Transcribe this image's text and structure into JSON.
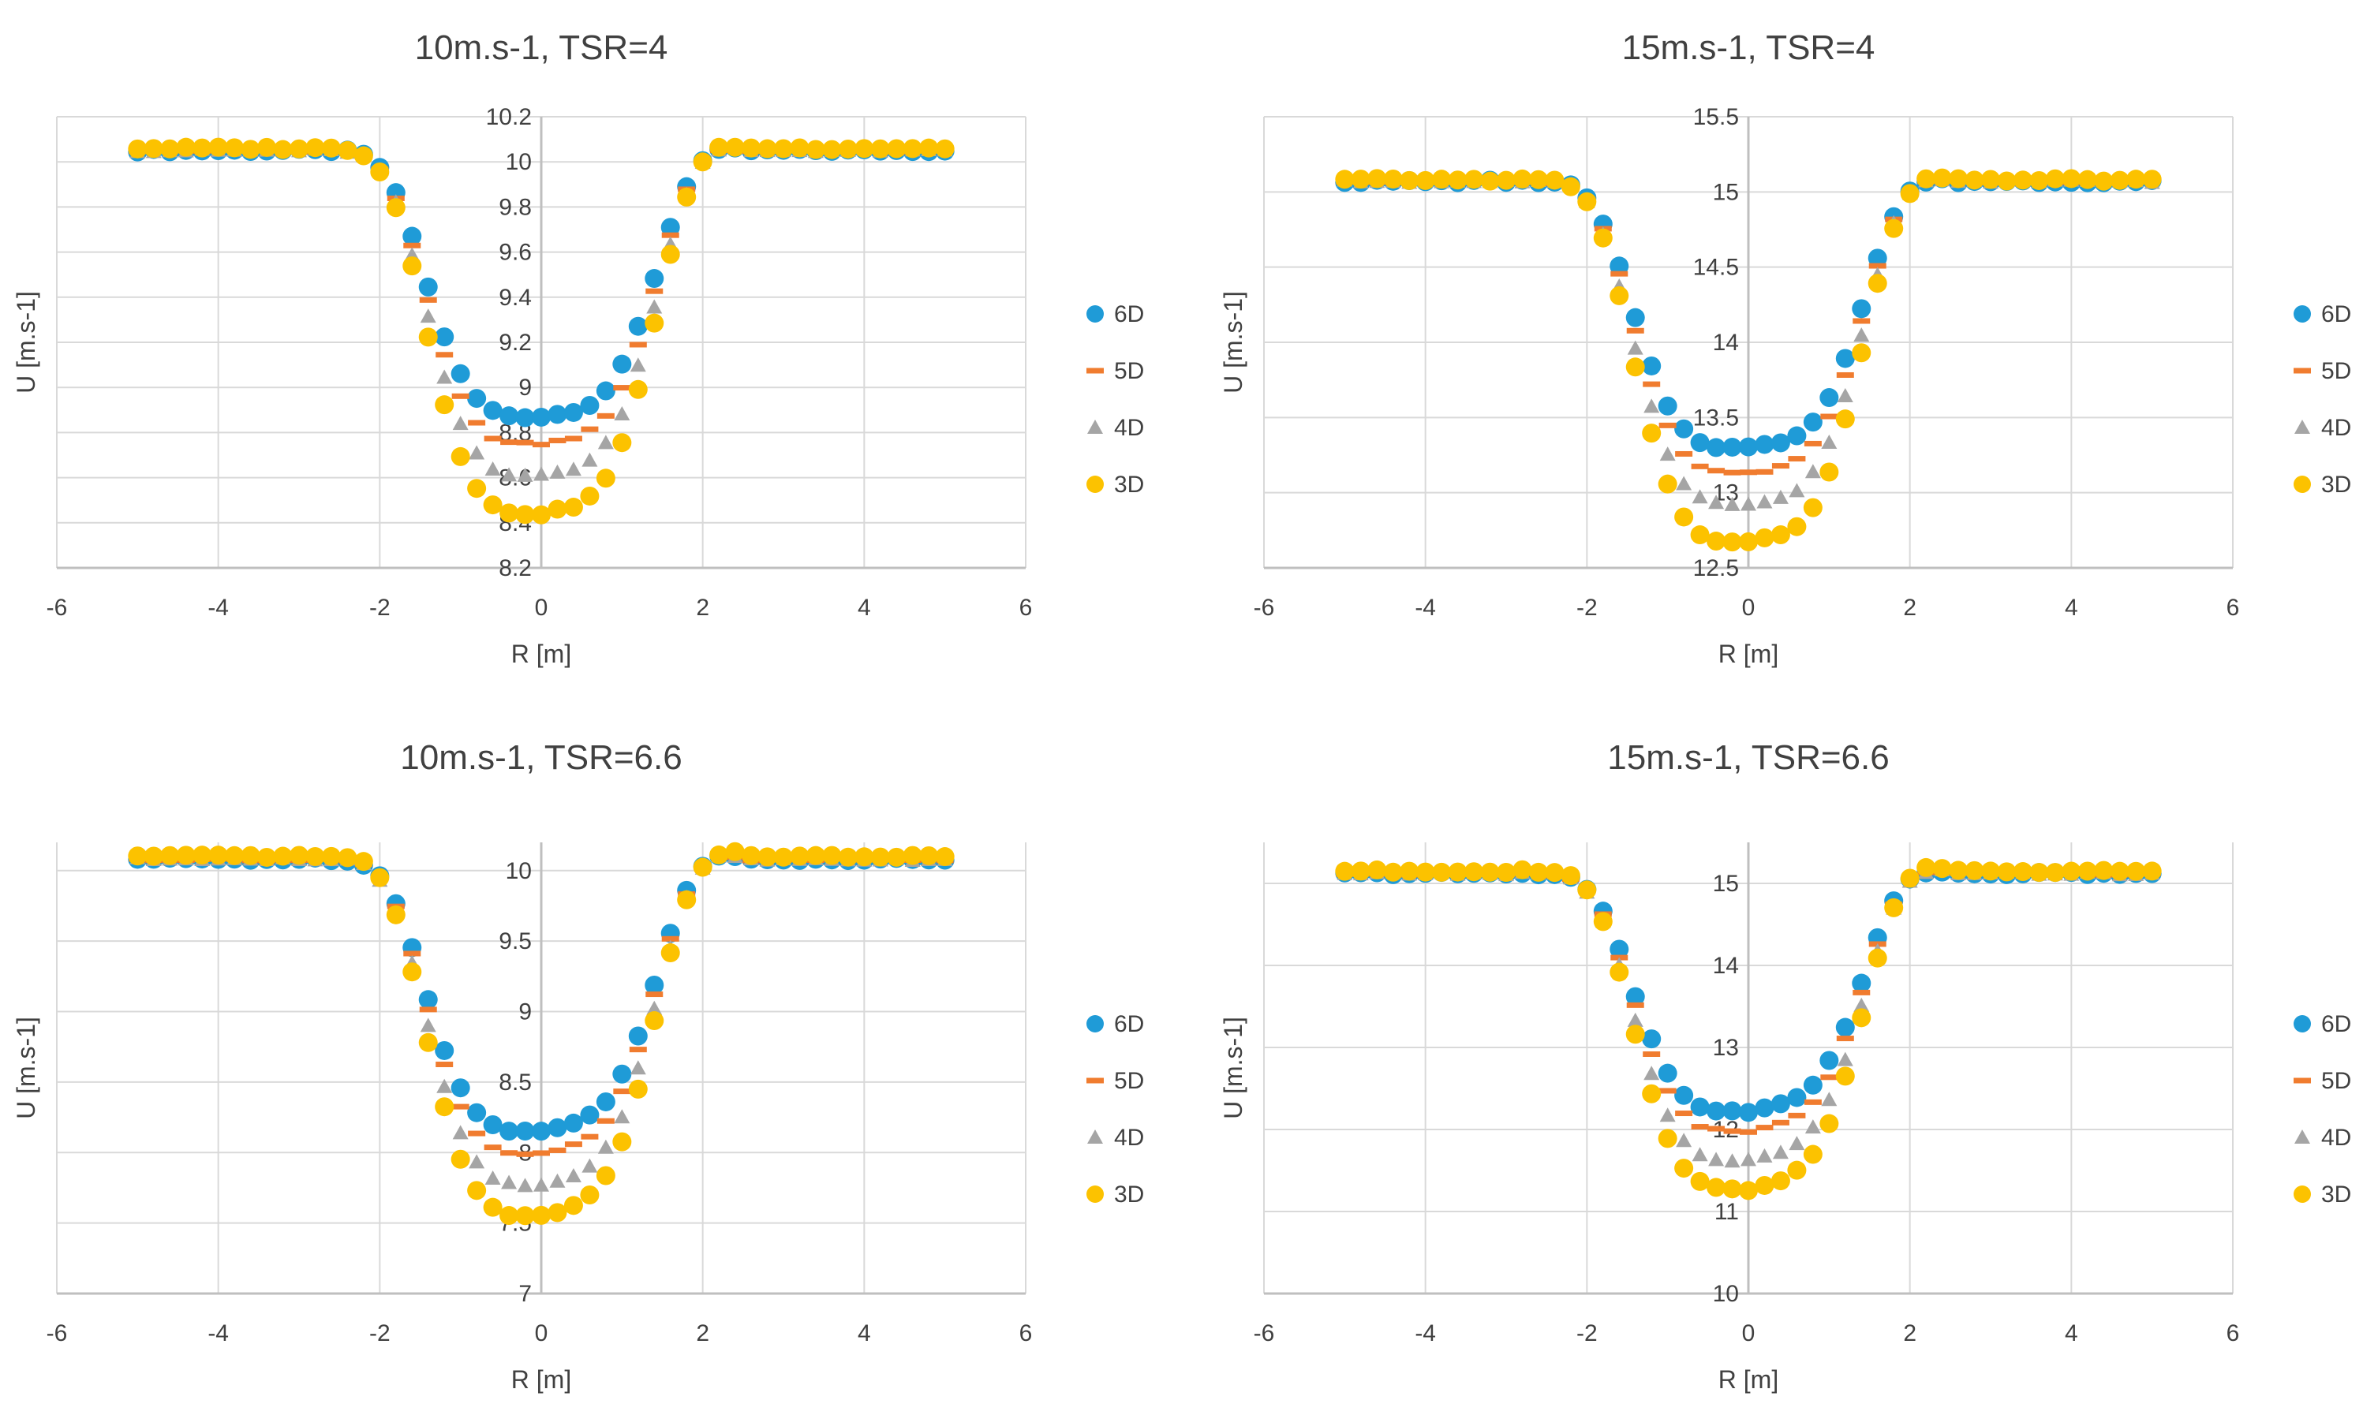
{
  "chart_data": [
    {
      "type": "scatter",
      "title": "10m.s-1, TSR=4",
      "xlabel": "R [m]",
      "ylabel": "U [m.s-1]",
      "xlim": [
        -6,
        6
      ],
      "ylim": [
        8.2,
        10.2
      ],
      "xticks": [
        -6,
        -4,
        -2,
        0,
        2,
        4,
        6
      ],
      "yticks": [
        "8.2",
        "8.4",
        "8.6",
        "8.8",
        "9",
        "9.2",
        "9.4",
        "9.6",
        "9.8",
        "10",
        "10.2"
      ],
      "grid": true,
      "legend_position": "right",
      "dip": 0.7,
      "series": [
        {
          "name": "6D",
          "color": "#1f9bd7",
          "marker": "circle",
          "min": 8.87,
          "base": 10.05
        },
        {
          "name": "5D",
          "color": "#f07c2f",
          "marker": "dash",
          "min": 8.75,
          "base": 10.05
        },
        {
          "name": "4D",
          "color": "#a5a5a5",
          "marker": "triangle",
          "min": 8.61,
          "base": 10.05
        },
        {
          "name": "3D",
          "color": "#fcc200",
          "marker": "circle",
          "min": 8.44,
          "base": 10.06
        }
      ]
    },
    {
      "type": "scatter",
      "title": "15m.s-1, TSR=4",
      "xlabel": "R [m]",
      "ylabel": "U [m.s-1]",
      "xlim": [
        -6,
        6
      ],
      "ylim": [
        12.5,
        15.5
      ],
      "xticks": [
        -6,
        -4,
        -2,
        0,
        2,
        4,
        6
      ],
      "yticks": [
        "12.5",
        "13",
        "13.5",
        "14",
        "14.5",
        "15",
        "15.5"
      ],
      "grid": true,
      "legend_position": "right",
      "dip": 0.7,
      "series": [
        {
          "name": "6D",
          "color": "#1f9bd7",
          "marker": "circle",
          "min": 13.3,
          "base": 15.07
        },
        {
          "name": "5D",
          "color": "#f07c2f",
          "marker": "dash",
          "min": 13.13,
          "base": 15.07
        },
        {
          "name": "4D",
          "color": "#a5a5a5",
          "marker": "triangle",
          "min": 12.92,
          "base": 15.07
        },
        {
          "name": "3D",
          "color": "#fcc200",
          "marker": "circle",
          "min": 12.67,
          "base": 15.08
        }
      ]
    },
    {
      "type": "scatter",
      "title": "10m.s-1, TSR=6.6",
      "xlabel": "R [m]",
      "ylabel": "U [m.s-1]",
      "xlim": [
        -6,
        6
      ],
      "ylim": [
        7,
        10.2
      ],
      "xticks": [
        -6,
        -4,
        -2,
        0,
        2,
        4,
        6
      ],
      "yticks": [
        "7",
        "7.5",
        "8",
        "8.5",
        "9",
        "9.5",
        "10"
      ],
      "grid": true,
      "legend_position": "right",
      "dip": 0.55,
      "series": [
        {
          "name": "6D",
          "color": "#1f9bd7",
          "marker": "circle",
          "min": 8.15,
          "base": 10.08
        },
        {
          "name": "5D",
          "color": "#f07c2f",
          "marker": "dash",
          "min": 7.99,
          "base": 10.08
        },
        {
          "name": "4D",
          "color": "#a5a5a5",
          "marker": "triangle",
          "min": 7.77,
          "base": 10.08
        },
        {
          "name": "3D",
          "color": "#fcc200",
          "marker": "circle",
          "min": 7.55,
          "base": 10.1
        }
      ]
    },
    {
      "type": "scatter",
      "title": "15m.s-1, TSR=6.6",
      "xlabel": "R [m]",
      "ylabel": "U [m.s-1]",
      "xlim": [
        -6,
        6
      ],
      "ylim": [
        10,
        15.5
      ],
      "xticks": [
        -6,
        -4,
        -2,
        0,
        2,
        4,
        6
      ],
      "yticks": [
        "10",
        "11",
        "12",
        "13",
        "14",
        "15"
      ],
      "grid": true,
      "legend_position": "right",
      "dip": 0.55,
      "series": [
        {
          "name": "6D",
          "color": "#1f9bd7",
          "marker": "circle",
          "min": 12.22,
          "base": 15.12
        },
        {
          "name": "5D",
          "color": "#f07c2f",
          "marker": "dash",
          "min": 11.98,
          "base": 15.12
        },
        {
          "name": "4D",
          "color": "#a5a5a5",
          "marker": "triangle",
          "min": 11.62,
          "base": 15.12
        },
        {
          "name": "3D",
          "color": "#fcc200",
          "marker": "circle",
          "min": 11.27,
          "base": 15.15
        }
      ]
    }
  ]
}
